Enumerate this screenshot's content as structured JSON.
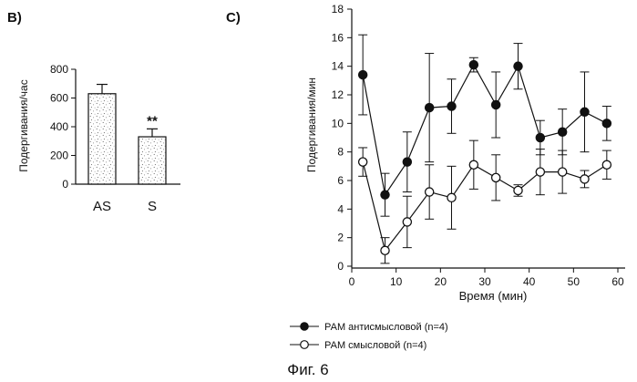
{
  "figure": {
    "caption": "Фиг. 6"
  },
  "colors": {
    "ink": "#111111",
    "bar_fill": "#ffffff",
    "marker_open": "#ffffff"
  },
  "chart_data": [
    {
      "type": "bar",
      "panel_label": "B)",
      "title": "",
      "xlabel": "",
      "ylabel": "Подергивания/час",
      "ylim": [
        0,
        800
      ],
      "yticks": [
        "0",
        "200",
        "400",
        "600",
        "800"
      ],
      "categories": [
        "AS",
        "S"
      ],
      "values": [
        630,
        330
      ],
      "errors": [
        65,
        55
      ],
      "annotations": [
        "",
        "**"
      ],
      "grid": false
    },
    {
      "type": "line",
      "panel_label": "C)",
      "title": "",
      "xlabel": "Время (мин)",
      "ylabel": "Подергивания/мин",
      "xlim": [
        0,
        60
      ],
      "ylim": [
        0,
        18
      ],
      "xticks": [
        "0",
        "10",
        "20",
        "30",
        "40",
        "50",
        "60"
      ],
      "yticks": [
        "0",
        "2",
        "4",
        "6",
        "8",
        "10",
        "12",
        "14",
        "16",
        "18"
      ],
      "x": [
        2.5,
        7.5,
        12.5,
        17.5,
        22.5,
        27.5,
        32.5,
        37.5,
        42.5,
        47.5,
        52.5,
        57.5
      ],
      "series": [
        {
          "name": "РАМ антисмысловой (n=4)",
          "marker": "filled",
          "values": [
            13.4,
            5.0,
            7.3,
            11.1,
            11.2,
            14.1,
            11.3,
            14.0,
            9.0,
            9.4,
            10.8,
            10.0
          ],
          "errors": [
            2.8,
            1.5,
            2.1,
            3.8,
            1.9,
            0.5,
            2.3,
            1.6,
            1.2,
            1.6,
            2.8,
            1.2
          ]
        },
        {
          "name": "РАМ смысловой (n=4)",
          "marker": "open",
          "values": [
            7.3,
            1.1,
            3.1,
            5.2,
            4.8,
            7.1,
            6.2,
            5.3,
            6.6,
            6.6,
            6.1,
            7.1
          ],
          "errors": [
            1.0,
            0.9,
            1.8,
            1.9,
            2.2,
            1.7,
            1.6,
            0.4,
            1.6,
            1.5,
            0.6,
            1.0
          ]
        }
      ],
      "legend_position": "bottom-left",
      "grid": false
    }
  ]
}
